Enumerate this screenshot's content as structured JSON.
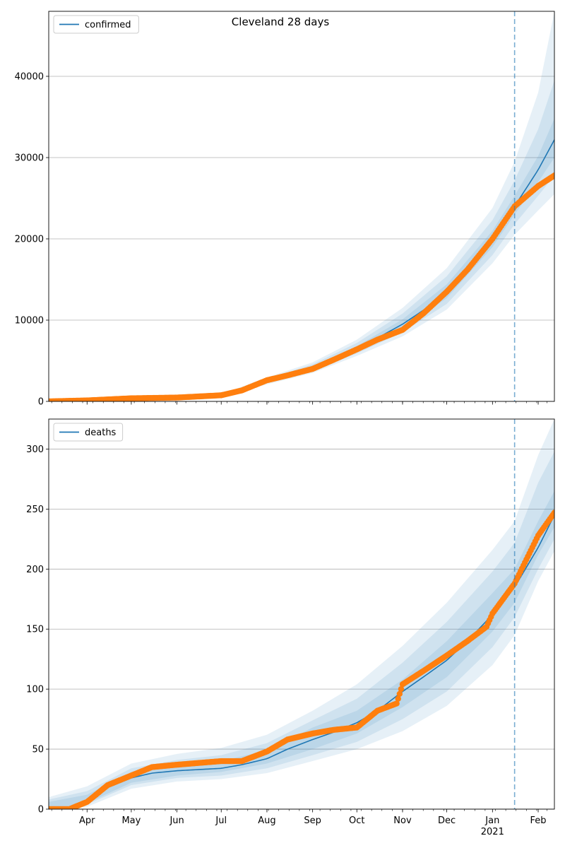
{
  "figure": {
    "title": "Cleveland 28 days"
  },
  "chart_data": [
    {
      "type": "line",
      "panel": "top",
      "legend": {
        "entries": [
          "confirmed"
        ],
        "placement": "upper-left"
      },
      "ylim": [
        0,
        48000
      ],
      "yticks": [
        0,
        10000,
        20000,
        30000,
        40000
      ],
      "xlim": [
        "2020-03-06",
        "2021-02-12"
      ],
      "xticks": [],
      "grid": "y",
      "forecast_start": "2021-01-16",
      "colors": {
        "model": "#1f77b4",
        "observed": "#ff7f0e",
        "band": "#1f77b4"
      },
      "series": [
        {
          "name": "confirmed",
          "kind": "model",
          "x": [
            "2020-03-06",
            "2020-04-01",
            "2020-05-01",
            "2020-06-01",
            "2020-07-01",
            "2020-07-15",
            "2020-08-01",
            "2020-08-15",
            "2020-09-01",
            "2020-09-15",
            "2020-10-01",
            "2020-10-15",
            "2020-11-01",
            "2020-11-15",
            "2020-12-01",
            "2020-12-15",
            "2021-01-01",
            "2021-01-16",
            "2021-02-01",
            "2021-02-12"
          ],
          "values": [
            0,
            150,
            350,
            420,
            700,
            1300,
            2500,
            3200,
            4100,
            5200,
            6500,
            7800,
            9500,
            11200,
            13500,
            16000,
            20000,
            24000,
            28500,
            32200
          ]
        },
        {
          "name": "observed",
          "kind": "points",
          "x": [
            "2020-03-06",
            "2020-04-01",
            "2020-05-01",
            "2020-06-01",
            "2020-07-01",
            "2020-07-15",
            "2020-08-01",
            "2020-08-15",
            "2020-09-01",
            "2020-09-15",
            "2020-10-01",
            "2020-10-15",
            "2020-11-01",
            "2020-11-15",
            "2020-12-01",
            "2020-12-15",
            "2021-01-01",
            "2021-01-16",
            "2021-02-01",
            "2021-02-12"
          ],
          "values": [
            0,
            120,
            380,
            470,
            750,
            1350,
            2600,
            3200,
            4000,
            5100,
            6400,
            7600,
            8800,
            10800,
            13500,
            16200,
            20000,
            24000,
            26500,
            27800
          ]
        }
      ],
      "bands": {
        "x": [
          "2020-03-06",
          "2020-05-01",
          "2020-07-01",
          "2020-08-01",
          "2020-09-01",
          "2020-10-01",
          "2020-11-01",
          "2020-12-01",
          "2021-01-01",
          "2021-01-16",
          "2021-02-01",
          "2021-02-12"
        ],
        "lower": [
          [
            0,
            280,
            550,
            2100,
            3500,
            5600,
            8000,
            11300,
            17000,
            20500,
            23500,
            25500
          ],
          [
            0,
            300,
            600,
            2250,
            3700,
            5900,
            8500,
            12000,
            18000,
            21800,
            25300,
            27800
          ],
          [
            0,
            330,
            650,
            2380,
            3900,
            6200,
            9000,
            12700,
            19000,
            23000,
            27000,
            30000
          ]
        ],
        "upper": [
          [
            0,
            380,
            750,
            2650,
            4300,
            6800,
            10100,
            14400,
            21000,
            25300,
            30200,
            34800
          ],
          [
            0,
            410,
            820,
            2800,
            4550,
            7200,
            10800,
            15400,
            22300,
            27200,
            33500,
            39500
          ],
          [
            0,
            440,
            880,
            2950,
            4800,
            7600,
            11500,
            16400,
            23800,
            29500,
            38000,
            48000
          ]
        ]
      }
    },
    {
      "type": "line",
      "panel": "bottom",
      "legend": {
        "entries": [
          "deaths"
        ],
        "placement": "upper-left"
      },
      "ylim": [
        0,
        325
      ],
      "yticks": [
        0,
        50,
        100,
        150,
        200,
        250,
        300
      ],
      "xlim": [
        "2020-03-06",
        "2021-02-12"
      ],
      "xticks": [
        "Apr",
        "May",
        "Jun",
        "Jul",
        "Aug",
        "Sep",
        "Oct",
        "Nov",
        "Dec",
        "Jan\n2021",
        "Feb"
      ],
      "grid": "y",
      "forecast_start": "2021-01-16",
      "colors": {
        "model": "#1f77b4",
        "observed": "#ff7f0e",
        "band": "#1f77b4"
      },
      "series": [
        {
          "name": "deaths",
          "kind": "model",
          "x": [
            "2020-03-06",
            "2020-03-20",
            "2020-04-01",
            "2020-04-15",
            "2020-05-01",
            "2020-05-15",
            "2020-06-01",
            "2020-07-01",
            "2020-07-15",
            "2020-08-01",
            "2020-08-15",
            "2020-09-01",
            "2020-09-15",
            "2020-10-01",
            "2020-10-15",
            "2020-11-01",
            "2020-11-15",
            "2020-12-01",
            "2020-12-15",
            "2021-01-01",
            "2021-01-16",
            "2021-02-01",
            "2021-02-12"
          ],
          "values": [
            0,
            1,
            7,
            18,
            26,
            30,
            32,
            34,
            37,
            42,
            50,
            58,
            64,
            72,
            82,
            98,
            110,
            124,
            140,
            162,
            185,
            218,
            245
          ]
        },
        {
          "name": "observed",
          "kind": "points",
          "x": [
            "2020-03-06",
            "2020-03-20",
            "2020-04-01",
            "2020-04-15",
            "2020-05-01",
            "2020-05-15",
            "2020-06-01",
            "2020-07-01",
            "2020-07-15",
            "2020-08-01",
            "2020-08-15",
            "2020-09-01",
            "2020-09-15",
            "2020-10-01",
            "2020-10-15",
            "2020-10-28",
            "2020-11-01",
            "2020-11-15",
            "2020-12-01",
            "2020-12-15",
            "2020-12-28",
            "2021-01-01",
            "2021-01-16",
            "2021-02-01",
            "2021-02-12"
          ],
          "values": [
            0,
            0,
            6,
            20,
            28,
            35,
            37,
            40,
            40,
            48,
            58,
            63,
            66,
            68,
            82,
            88,
            104,
            115,
            128,
            140,
            152,
            163,
            188,
            228,
            247
          ]
        }
      ],
      "bands": {
        "x": [
          "2020-03-06",
          "2020-04-01",
          "2020-05-01",
          "2020-06-01",
          "2020-07-01",
          "2020-08-01",
          "2020-09-01",
          "2020-10-01",
          "2020-11-01",
          "2020-12-01",
          "2021-01-01",
          "2021-01-16",
          "2021-02-01",
          "2021-02-12"
        ],
        "lower": [
          [
            0,
            2,
            17,
            23,
            25,
            30,
            40,
            50,
            65,
            86,
            120,
            145,
            190,
            215
          ],
          [
            0,
            4,
            20,
            26,
            28,
            34,
            45,
            56,
            75,
            98,
            135,
            160,
            200,
            225
          ],
          [
            0,
            5,
            22,
            28,
            31,
            38,
            50,
            63,
            85,
            110,
            148,
            172,
            212,
            235
          ]
        ],
        "upper": [
          [
            6,
            12,
            31,
            37,
            40,
            49,
            68,
            82,
            108,
            140,
            180,
            200,
            240,
            265
          ],
          [
            8,
            15,
            34,
            41,
            45,
            55,
            74,
            92,
            122,
            156,
            198,
            222,
            272,
            298
          ],
          [
            10,
            19,
            38,
            46,
            51,
            62,
            82,
            104,
            136,
            172,
            216,
            240,
            295,
            325
          ]
        ]
      }
    }
  ]
}
